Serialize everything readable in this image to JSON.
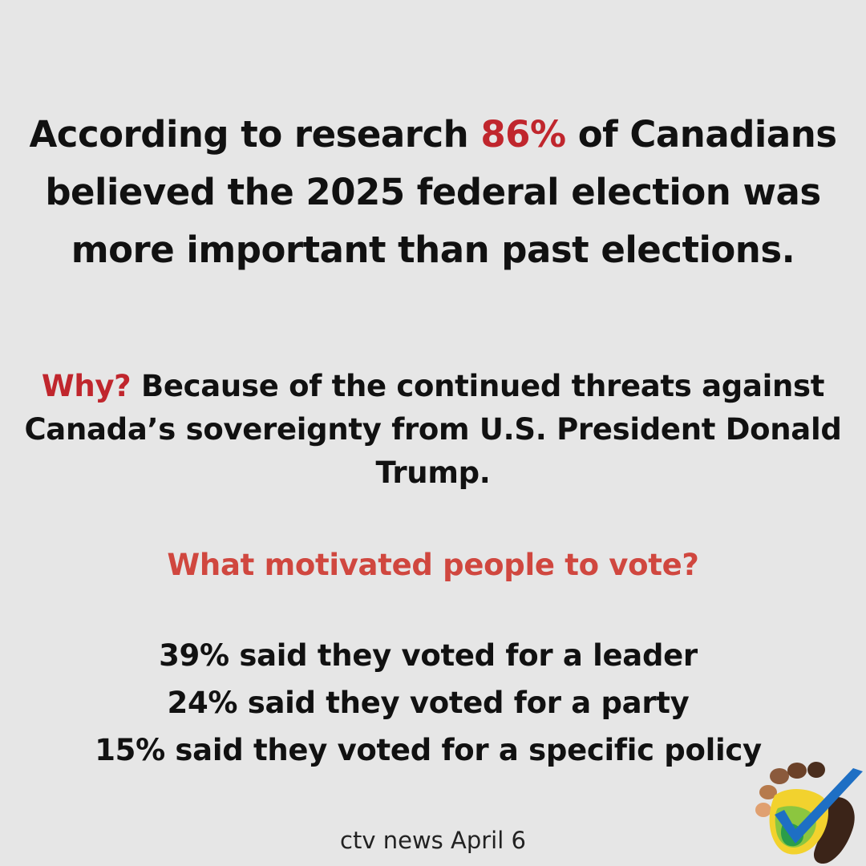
{
  "headline": {
    "before": "According to research ",
    "highlight": "86%",
    "after": " of Canadians believed the 2025 federal election was more important than past elections."
  },
  "why": {
    "label": "Why?",
    "text": " Because of the continued threats against Canada’s sovereignty from U.S. President Donald Trump."
  },
  "subheading": "What motivated people to vote?",
  "stats": [
    "39% said they voted for a leader",
    "24% said they voted for a party",
    "15% said they voted for a specific policy"
  ],
  "source": "ctv news April 6",
  "colors": {
    "background": "#e6e6e6",
    "accent_red": "#c0262d",
    "subheading_red": "#d0473f",
    "text": "#111111"
  },
  "logo": {
    "icon": "checkmark-footprint-logo-icon"
  }
}
